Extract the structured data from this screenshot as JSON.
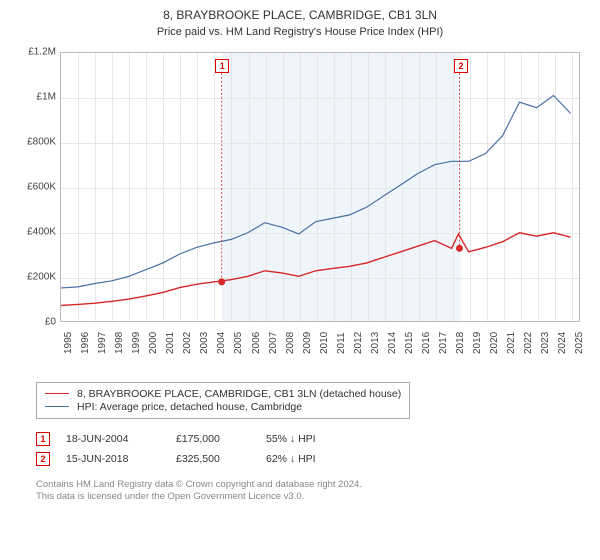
{
  "title_line1": "8, BRAYBROOKE PLACE, CAMBRIDGE, CB1 3LN",
  "title_line2": "Price paid vs. HM Land Registry's House Price Index (HPI)",
  "chart": {
    "type": "line",
    "background_color": "#ffffff",
    "grid_color": "#e6e6e6",
    "border_color": "#bbbbbb",
    "shaded_band_color": "rgba(70,130,200,0.08)",
    "shaded_band_start": 2004.46,
    "shaded_band_end": 2018.46,
    "ylim": [
      0,
      1200000
    ],
    "ytick_step": 200000,
    "ytick_labels": [
      "£0",
      "£200K",
      "£400K",
      "£600K",
      "£800K",
      "£1M",
      "£1.2M"
    ],
    "xlim": [
      1995,
      2025.5
    ],
    "xticks": [
      1995,
      1996,
      1997,
      1998,
      1999,
      2000,
      2001,
      2002,
      2003,
      2004,
      2005,
      2006,
      2007,
      2008,
      2009,
      2010,
      2011,
      2012,
      2013,
      2014,
      2015,
      2016,
      2017,
      2018,
      2019,
      2020,
      2021,
      2022,
      2023,
      2024,
      2025
    ],
    "label_fontsize": 10,
    "series": [
      {
        "name": "property_price",
        "color": "#d62728",
        "line_width": 1.4,
        "points": [
          [
            1995,
            70000
          ],
          [
            1996,
            74000
          ],
          [
            1997,
            80000
          ],
          [
            1998,
            88000
          ],
          [
            1999,
            98000
          ],
          [
            2000,
            112000
          ],
          [
            2001,
            128000
          ],
          [
            2002,
            150000
          ],
          [
            2003,
            165000
          ],
          [
            2004,
            175000
          ],
          [
            2005,
            185000
          ],
          [
            2006,
            200000
          ],
          [
            2007,
            225000
          ],
          [
            2008,
            215000
          ],
          [
            2009,
            200000
          ],
          [
            2010,
            225000
          ],
          [
            2011,
            235000
          ],
          [
            2012,
            245000
          ],
          [
            2013,
            260000
          ],
          [
            2014,
            285000
          ],
          [
            2015,
            310000
          ],
          [
            2016,
            335000
          ],
          [
            2017,
            360000
          ],
          [
            2018,
            325500
          ],
          [
            2018.4,
            390000
          ],
          [
            2019,
            310000
          ],
          [
            2020,
            330000
          ],
          [
            2021,
            355000
          ],
          [
            2022,
            395000
          ],
          [
            2023,
            380000
          ],
          [
            2024,
            395000
          ],
          [
            2025,
            375000
          ]
        ]
      },
      {
        "name": "hpi",
        "color": "#4a6fa5",
        "line_width": 1.2,
        "points": [
          [
            1995,
            148000
          ],
          [
            1996,
            153000
          ],
          [
            1997,
            168000
          ],
          [
            1998,
            180000
          ],
          [
            1999,
            200000
          ],
          [
            2000,
            230000
          ],
          [
            2001,
            260000
          ],
          [
            2002,
            300000
          ],
          [
            2003,
            330000
          ],
          [
            2004,
            350000
          ],
          [
            2005,
            365000
          ],
          [
            2006,
            395000
          ],
          [
            2007,
            440000
          ],
          [
            2008,
            420000
          ],
          [
            2009,
            390000
          ],
          [
            2010,
            445000
          ],
          [
            2011,
            460000
          ],
          [
            2012,
            475000
          ],
          [
            2013,
            510000
          ],
          [
            2014,
            560000
          ],
          [
            2015,
            610000
          ],
          [
            2016,
            660000
          ],
          [
            2017,
            700000
          ],
          [
            2018,
            715000
          ],
          [
            2019,
            715000
          ],
          [
            2020,
            750000
          ],
          [
            2021,
            830000
          ],
          [
            2022,
            980000
          ],
          [
            2023,
            955000
          ],
          [
            2024,
            1010000
          ],
          [
            2025,
            930000
          ]
        ]
      }
    ],
    "sale_markers": [
      {
        "num": "1",
        "x": 2004.46,
        "y": 175000,
        "dot_color": "#d62728"
      },
      {
        "num": "2",
        "x": 2018.46,
        "y": 325500,
        "dot_color": "#d62728"
      }
    ]
  },
  "legend": {
    "items": [
      {
        "color": "#d62728",
        "label": "8, BRAYBROOKE PLACE, CAMBRIDGE, CB1 3LN (detached house)"
      },
      {
        "color": "#4a6fa5",
        "label": "HPI: Average price, detached house, Cambridge"
      }
    ]
  },
  "sales": [
    {
      "num": "1",
      "date": "18-JUN-2004",
      "price": "£175,000",
      "diff": "55% ↓ HPI"
    },
    {
      "num": "2",
      "date": "15-JUN-2018",
      "price": "£325,500",
      "diff": "62% ↓ HPI"
    }
  ],
  "footer": {
    "line1": "Contains HM Land Registry data © Crown copyright and database right 2024.",
    "line2": "This data is licensed under the Open Government Licence v3.0."
  }
}
